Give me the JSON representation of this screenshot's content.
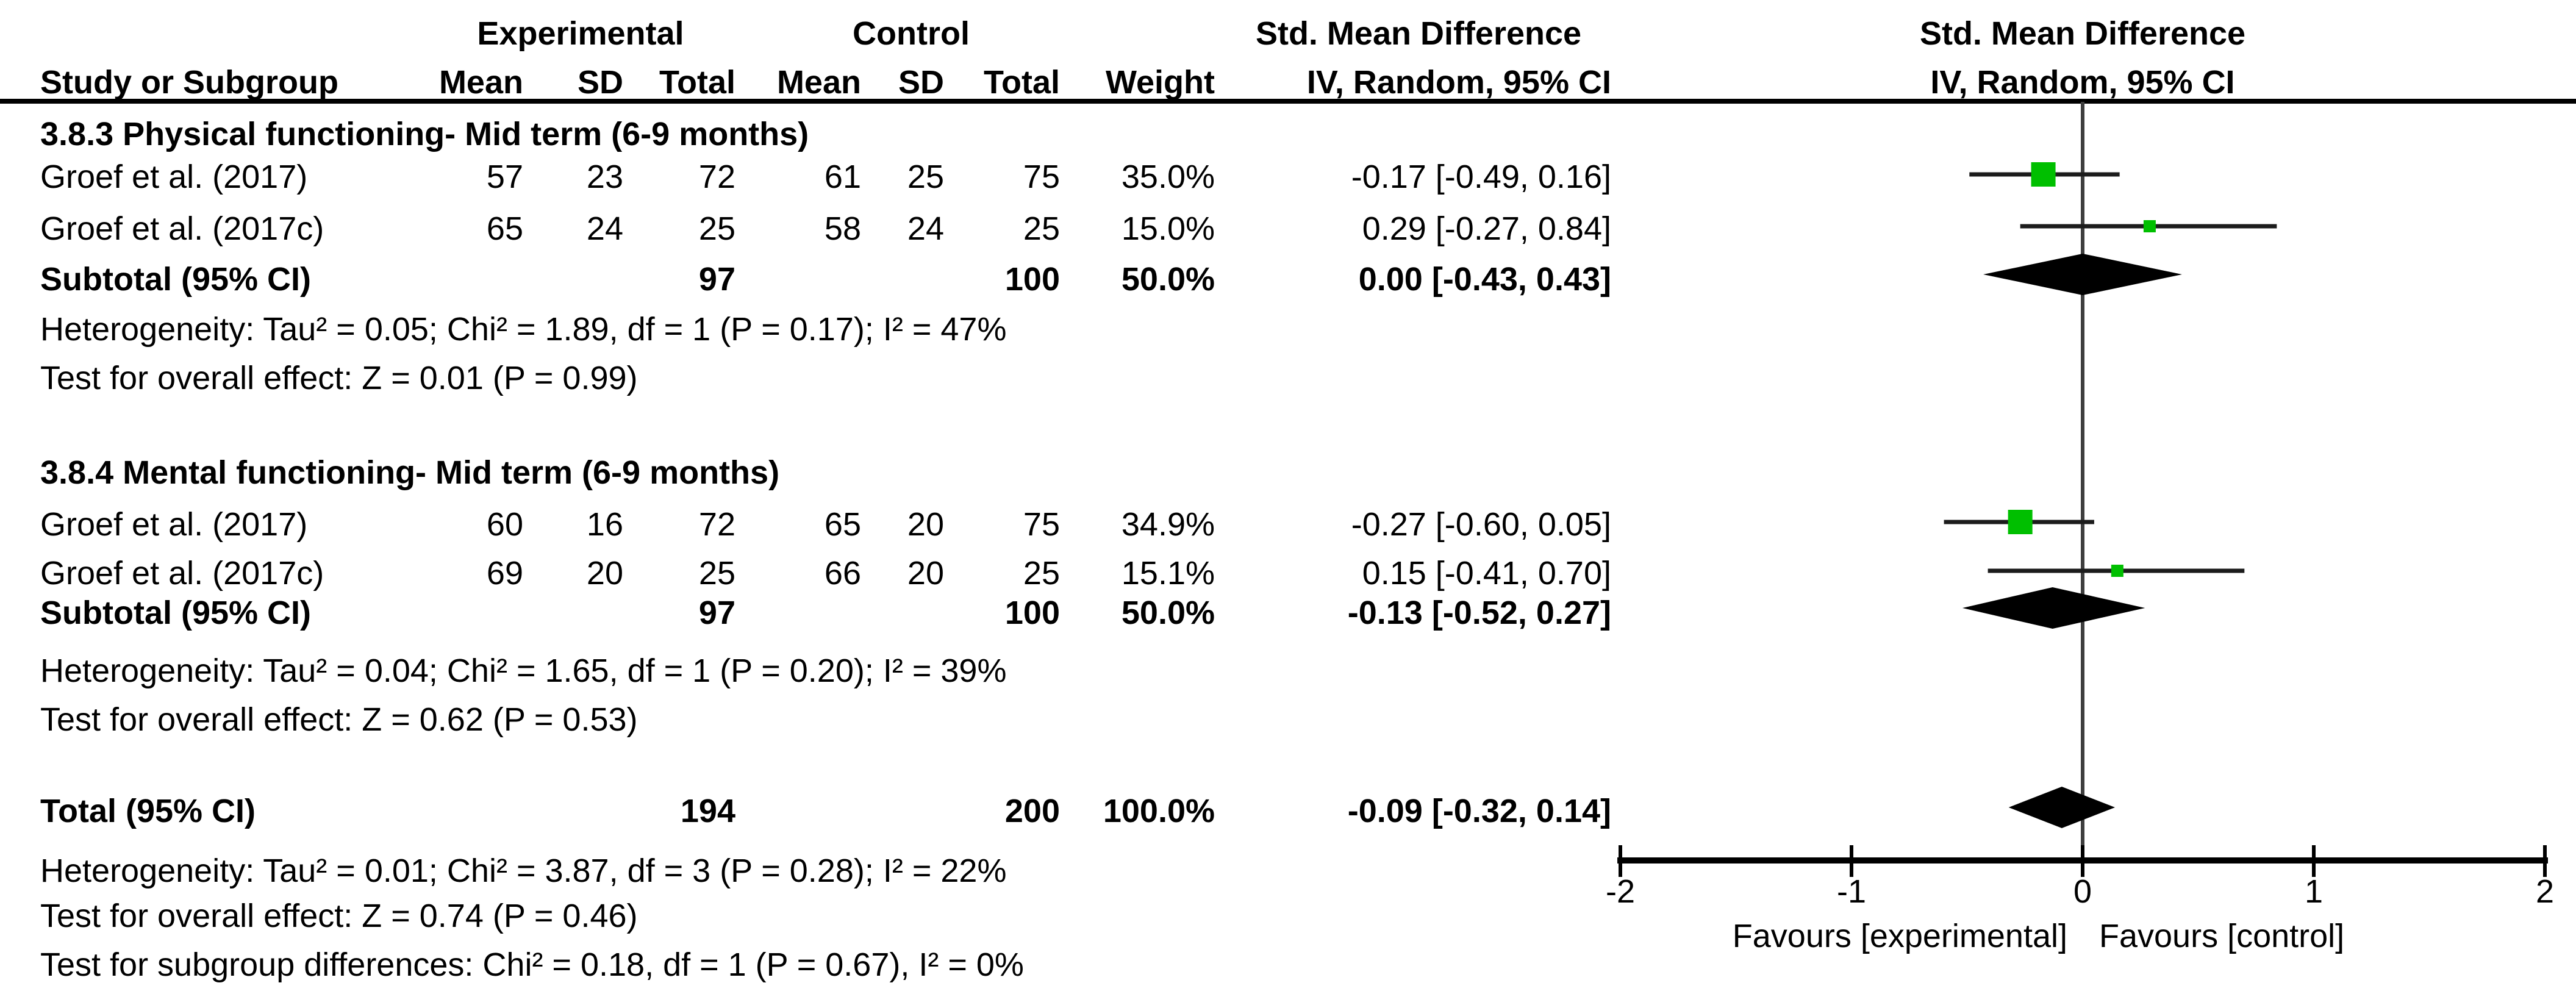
{
  "header": {
    "study": "Study or Subgroup",
    "experimental": "Experimental",
    "control": "Control",
    "mean": "Mean",
    "sd": "SD",
    "total": "Total",
    "weight": "Weight",
    "smd_title": "Std. Mean Difference",
    "smd_method": "IV, Random, 95% CI"
  },
  "chart_data": {
    "type": "forest",
    "effect_measure": "Std. Mean Difference",
    "method": "IV, Random, 95% CI",
    "axis": {
      "min": -2,
      "max": 2,
      "ticks": [
        -2,
        -1,
        0,
        1,
        2
      ],
      "favours_left": "Favours [experimental]",
      "favours_right": "Favours [control]"
    },
    "sections": [
      {
        "heading": "3.8.3 Physical functioning- Mid term (6-9 months)",
        "studies": [
          {
            "study": "Groef et al. (2017)",
            "exp": {
              "mean": "57",
              "sd": "23",
              "total": "72"
            },
            "ctrl": {
              "mean": "61",
              "sd": "25",
              "total": "75"
            },
            "weight": "35.0%",
            "weight_pct": 35.0,
            "smd": -0.17,
            "ci_low": -0.49,
            "ci_high": 0.16,
            "ci_text": "-0.17 [-0.49, 0.16]"
          },
          {
            "study": "Groef et al. (2017c)",
            "exp": {
              "mean": "65",
              "sd": "24",
              "total": "25"
            },
            "ctrl": {
              "mean": "58",
              "sd": "24",
              "total": "25"
            },
            "weight": "15.0%",
            "weight_pct": 15.0,
            "smd": 0.29,
            "ci_low": -0.27,
            "ci_high": 0.84,
            "ci_text": "0.29 [-0.27, 0.84]"
          }
        ],
        "subtotal": {
          "label": "Subtotal (95% CI)",
          "total_exp": "97",
          "total_ctrl": "100",
          "weight": "50.0%",
          "smd": 0.0,
          "ci_low": -0.43,
          "ci_high": 0.43,
          "ci_text": "0.00 [-0.43, 0.43]"
        },
        "heterogeneity": "Heterogeneity: Tau² = 0.05; Chi² = 1.89, df = 1 (P = 0.17); I² = 47%",
        "overall_effect": "Test for overall effect: Z = 0.01 (P = 0.99)"
      },
      {
        "heading": "3.8.4 Mental functioning- Mid term (6-9 months)",
        "studies": [
          {
            "study": "Groef et al. (2017)",
            "exp": {
              "mean": "60",
              "sd": "16",
              "total": "72"
            },
            "ctrl": {
              "mean": "65",
              "sd": "20",
              "total": "75"
            },
            "weight": "34.9%",
            "weight_pct": 34.9,
            "smd": -0.27,
            "ci_low": -0.6,
            "ci_high": 0.05,
            "ci_text": "-0.27 [-0.60, 0.05]"
          },
          {
            "study": "Groef et al. (2017c)",
            "exp": {
              "mean": "69",
              "sd": "20",
              "total": "25"
            },
            "ctrl": {
              "mean": "66",
              "sd": "20",
              "total": "25"
            },
            "weight": "15.1%",
            "weight_pct": 15.1,
            "smd": 0.15,
            "ci_low": -0.41,
            "ci_high": 0.7,
            "ci_text": "0.15 [-0.41, 0.70]"
          }
        ],
        "subtotal": {
          "label": "Subtotal (95% CI)",
          "total_exp": "97",
          "total_ctrl": "100",
          "weight": "50.0%",
          "smd": -0.13,
          "ci_low": -0.52,
          "ci_high": 0.27,
          "ci_text": "-0.13 [-0.52, 0.27]"
        },
        "heterogeneity": "Heterogeneity: Tau² = 0.04; Chi² = 1.65, df = 1 (P = 0.20); I² = 39%",
        "overall_effect": "Test for overall effect: Z = 0.62 (P = 0.53)"
      }
    ],
    "total": {
      "label": "Total (95% CI)",
      "total_exp": "194",
      "total_ctrl": "200",
      "weight": "100.0%",
      "smd": -0.09,
      "ci_low": -0.32,
      "ci_high": 0.14,
      "ci_text": "-0.09 [-0.32, 0.14]"
    },
    "footer": [
      "Heterogeneity: Tau² = 0.01; Chi² = 3.87, df = 3 (P = 0.28); I² = 22%",
      "Test for overall effect: Z = 0.74 (P = 0.46)",
      "Test for subgroup differences: Chi² = 0.18, df = 1 (P = 0.67), I² = 0%"
    ]
  },
  "colors": {
    "marker_green": "#00bf00",
    "diamond_black": "#000000",
    "ci_line": "#1c1c1c",
    "zero_line": "#3f3f3f",
    "axis_black": "#000000"
  }
}
